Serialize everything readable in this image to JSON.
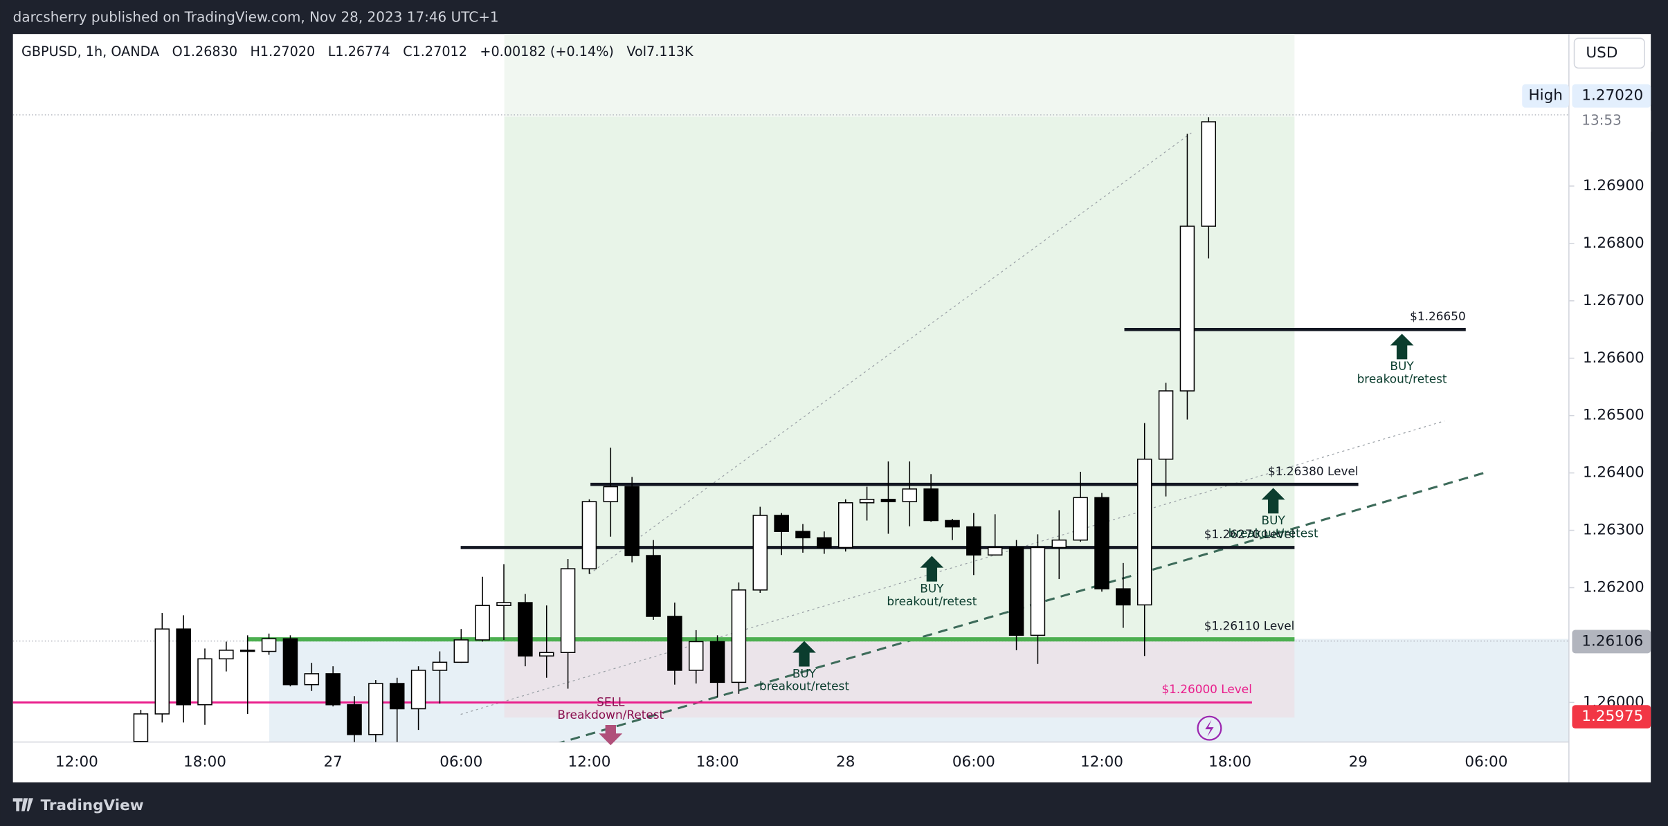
{
  "header": {
    "text": "darcsherry published on TradingView.com, Nov 28, 2023 17:46 UTC+1"
  },
  "footer": {
    "brand": "TradingView"
  },
  "chart_data": {
    "type": "candlestick",
    "legend": [
      "GBPUSD, 1h, OANDA",
      "O1.26830",
      "H1.27020",
      "L1.26774",
      "C1.27012",
      "+0.00182 (+0.14%)",
      "Vol7.113K"
    ],
    "currency": "USD",
    "categories": [
      "12:00",
      null,
      null,
      null,
      null,
      null,
      "18:00",
      null,
      null,
      null,
      null,
      null,
      "27",
      null,
      null,
      null,
      null,
      null,
      "06:00",
      null,
      null,
      null,
      null,
      null,
      "12:00",
      null,
      null,
      null,
      null,
      null,
      "18:00",
      null,
      null,
      null,
      null,
      null,
      "28",
      null,
      null,
      null,
      null,
      null,
      "06:00",
      null,
      null,
      null,
      null,
      null,
      "12:00",
      null,
      null,
      null,
      null,
      null,
      "18:00",
      null,
      null,
      null,
      null,
      null,
      "29",
      null,
      null,
      null,
      null,
      null,
      "06:00"
    ],
    "open": [
      null,
      null,
      null,
      1.25932,
      1.2598,
      1.26128,
      1.25996,
      1.26076,
      1.26091,
      1.26089,
      1.26111,
      1.26031,
      1.2605,
      1.25996,
      1.25944,
      1.26033,
      1.25989,
      1.26056,
      1.2607,
      1.26109,
      1.26169,
      1.26174,
      1.26081,
      1.26087,
      1.26233,
      1.2635,
      1.26376,
      1.26256,
      1.2615,
      1.26056,
      1.26106,
      1.26035,
      1.26196,
      1.26326,
      1.26298,
      1.26287,
      1.2627,
      1.26348,
      1.26354,
      1.2635,
      1.26372,
      1.26317,
      1.26306,
      1.26257,
      1.2627,
      1.26117,
      1.2627,
      1.26283,
      1.26357,
      1.26198,
      1.2617,
      1.26424,
      1.26543,
      1.2683,
      null,
      null,
      null,
      null,
      null,
      null,
      null,
      null,
      null,
      null,
      null,
      null,
      null
    ],
    "high": [
      null,
      null,
      null,
      1.25987,
      1.26156,
      1.26152,
      1.26094,
      1.26106,
      1.26117,
      1.2612,
      1.26117,
      1.26069,
      1.26063,
      1.26011,
      1.26039,
      1.26043,
      1.26063,
      1.26089,
      1.26128,
      1.26219,
      1.26241,
      1.26189,
      1.26169,
      1.2625,
      1.26354,
      1.26444,
      1.26393,
      1.26283,
      1.26174,
      1.26126,
      1.26117,
      1.26209,
      1.26341,
      1.2633,
      1.26311,
      1.26298,
      1.26354,
      1.26376,
      1.2642,
      1.2642,
      1.26398,
      1.2632,
      1.2633,
      1.26328,
      1.26283,
      1.26293,
      1.26335,
      1.26402,
      1.26365,
      1.26243,
      1.26487,
      1.26557,
      1.26991,
      1.2702,
      null,
      null,
      null,
      null,
      null,
      null,
      null,
      null,
      null,
      null,
      null,
      null,
      null
    ],
    "low": [
      null,
      null,
      null,
      1.25928,
      1.25965,
      1.25965,
      1.25961,
      1.26054,
      1.2598,
      1.26083,
      1.26028,
      1.2602,
      1.25993,
      1.25928,
      1.25928,
      1.25928,
      1.25952,
      1.25998,
      1.26069,
      1.26106,
      1.26109,
      1.26063,
      1.26043,
      1.26024,
      1.26224,
      1.26289,
      1.26244,
      1.26144,
      1.26031,
      1.26033,
      1.26009,
      1.26015,
      1.26191,
      1.26257,
      1.26261,
      1.26259,
      1.26263,
      1.26317,
      1.26294,
      1.26307,
      1.26315,
      1.26283,
      1.26222,
      1.26256,
      1.26091,
      1.26067,
      1.26215,
      1.2628,
      1.26193,
      1.2613,
      1.26081,
      1.26359,
      1.26493,
      1.26774,
      null,
      null,
      null,
      null,
      null,
      null,
      null,
      null,
      null,
      null,
      null,
      null,
      null
    ],
    "close": [
      null,
      null,
      null,
      1.2598,
      1.26128,
      1.25996,
      1.26076,
      1.26091,
      1.26089,
      1.26111,
      1.26031,
      1.2605,
      1.25996,
      1.25944,
      1.26033,
      1.25989,
      1.26056,
      1.2607,
      1.26109,
      1.26169,
      1.26174,
      1.26081,
      1.26087,
      1.26233,
      1.2635,
      1.26376,
      1.26256,
      1.2615,
      1.26056,
      1.26106,
      1.26035,
      1.26196,
      1.26326,
      1.26298,
      1.26287,
      1.2627,
      1.26348,
      1.26354,
      1.2635,
      1.26372,
      1.26317,
      1.26306,
      1.26257,
      1.2627,
      1.26117,
      1.2627,
      1.26283,
      1.26357,
      1.26198,
      1.2617,
      1.26424,
      1.26543,
      1.2683,
      1.27012,
      null,
      null,
      null,
      null,
      null,
      null,
      null,
      null,
      null,
      null,
      null,
      null,
      null
    ],
    "up_color": "#ffffff",
    "down_color": "#000000",
    "ylim": [
      1.25931,
      1.27165
    ],
    "yticks": [
      {
        "value": 1.26,
        "label": "1.26000"
      },
      {
        "value": 1.262,
        "label": "1.26200"
      },
      {
        "value": 1.263,
        "label": "1.26300"
      },
      {
        "value": 1.264,
        "label": "1.26400"
      },
      {
        "value": 1.265,
        "label": "1.26500"
      },
      {
        "value": 1.266,
        "label": "1.26600"
      },
      {
        "value": 1.267,
        "label": "1.26700"
      },
      {
        "value": 1.268,
        "label": "1.26800"
      },
      {
        "value": 1.269,
        "label": "1.26900"
      }
    ],
    "levels": [
      {
        "value": 1.2665,
        "label": "$1.26650",
        "color": "#131722"
      },
      {
        "value": 1.2638,
        "label": "$1.26380 Level",
        "color": "#131722"
      },
      {
        "value": 1.2627,
        "label": "$1.26270 Level",
        "color": "#131722"
      },
      {
        "value": 1.2611,
        "label": "$1.26110 Level",
        "color": "#4caf50"
      },
      {
        "value": 1.26,
        "label": "$1.26000 Level",
        "color": "#e91e8c"
      }
    ],
    "price_labels": [
      {
        "value": 1.2702,
        "label": "1.27020",
        "tag": "High",
        "color": "#e3effd"
      },
      {
        "value": 1.26106,
        "label": "1.26106",
        "color": "#b2b5be"
      },
      {
        "value": 1.25975,
        "label": "1.25975",
        "color": "#f23645"
      }
    ],
    "countdown": "13:53",
    "signals": [
      {
        "label": "BUY",
        "note": "breakout/retest"
      },
      {
        "label": "BUY",
        "note": "breakout/retest"
      },
      {
        "label": "BUY",
        "note": "breakout/retest"
      },
      {
        "label": "BUY",
        "note": "breakout/retest"
      },
      {
        "label": "SELL",
        "note": "Breakdown/Retest"
      }
    ]
  }
}
